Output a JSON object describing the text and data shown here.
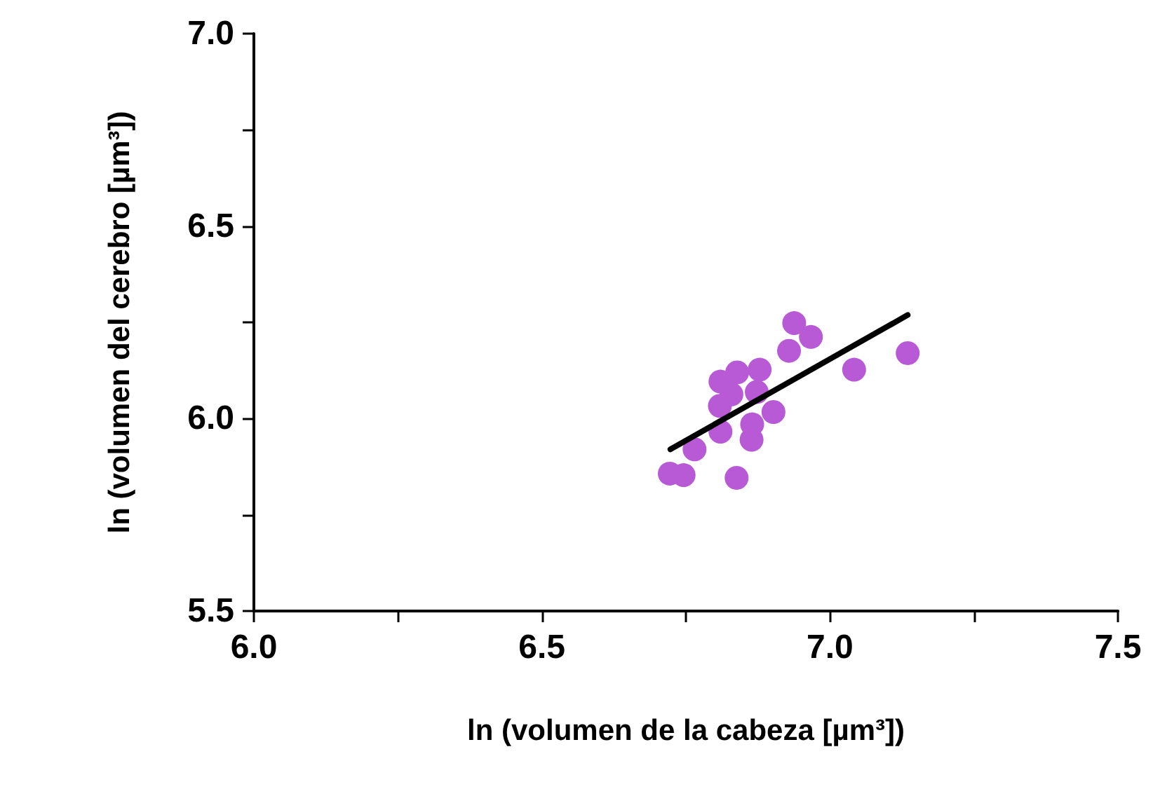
{
  "chart_data": {
    "type": "scatter",
    "xlabel": "ln (volumen de la cabeza [µm³])",
    "ylabel": "ln (volumen del cerebro [µm³])",
    "xlim": [
      6.0,
      7.5
    ],
    "xticks": [
      {
        "value": 6.0,
        "label": "6.0"
      },
      {
        "value": 6.25,
        "label": null
      },
      {
        "value": 6.5,
        "label": "6.5"
      },
      {
        "value": 6.75,
        "label": null
      },
      {
        "value": 7.0,
        "label": "7.0"
      },
      {
        "value": 7.25,
        "label": null
      },
      {
        "value": 7.5,
        "label": "7.5"
      }
    ],
    "ylim": [
      5.5,
      7.0
    ],
    "yticks": [
      {
        "value": 5.5,
        "label": "5.5"
      },
      {
        "value": 5.75,
        "label": null
      },
      {
        "value": 6.0,
        "label": "6.0"
      },
      {
        "value": 6.25,
        "label": null
      },
      {
        "value": 6.5,
        "label": "6.5"
      },
      {
        "value": 6.75,
        "label": null
      },
      {
        "value": 7.0,
        "label": "7.0"
      }
    ],
    "grid": false,
    "marker": "circle",
    "series": [
      {
        "color": "#b85ad6",
        "x": [
          6.938,
          6.967,
          6.929,
          7.135,
          7.042,
          6.878,
          6.839,
          6.81,
          6.873,
          6.829,
          6.809,
          6.902,
          6.81,
          6.864,
          6.765,
          6.722,
          6.746,
          6.838,
          6.865
        ],
        "values": [
          6.248,
          6.212,
          6.176,
          6.17,
          6.127,
          6.127,
          6.12,
          6.096,
          6.069,
          6.063,
          6.033,
          6.017,
          5.966,
          5.945,
          5.92,
          5.857,
          5.853,
          5.846,
          5.985
        ]
      },
      {
        "type": "line",
        "color": "#000000",
        "marker": "none",
        "line_style": "solid",
        "x": [
          6.723,
          7.135
        ],
        "values": [
          5.92,
          6.269
        ]
      }
    ]
  }
}
